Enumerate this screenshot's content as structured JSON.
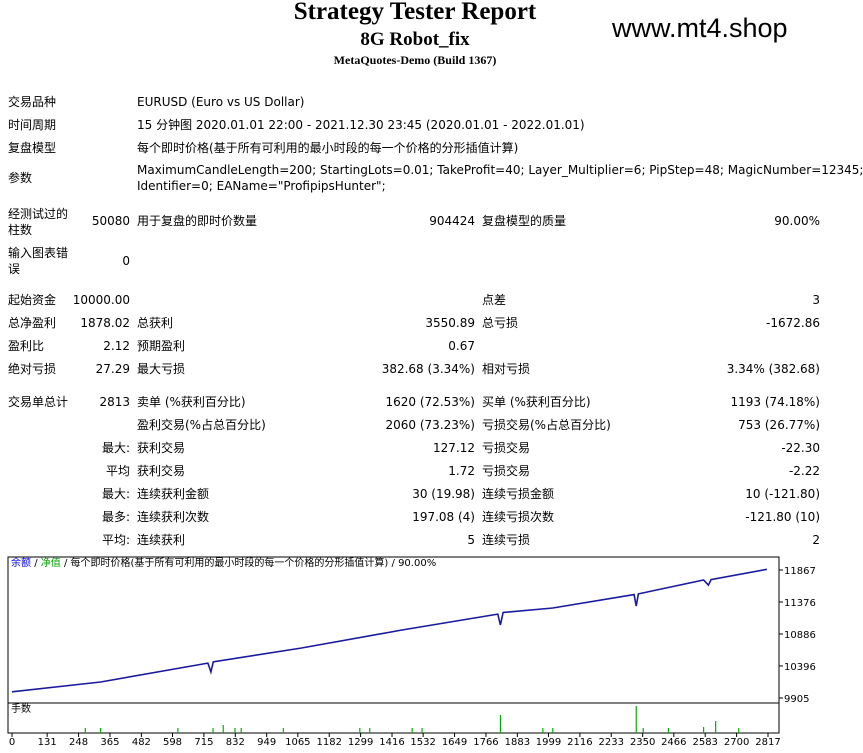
{
  "header": {
    "title": "Strategy Tester Report",
    "subtitle": "8G Robot_fix",
    "build": "MetaQuotes-Demo (Build 1367)",
    "watermark": "www.mt4.shop"
  },
  "info": [
    {
      "label": "交易品种",
      "value": "EURUSD (Euro vs US Dollar)"
    },
    {
      "label": "时间周期",
      "value": "15 分钟图 2020.01.01 22:00 - 2021.12.30 23:45 (2020.01.01 - 2022.01.01)"
    },
    {
      "label": "复盘模型",
      "value": "每个即时价格(基于所有可利用的最小时段的每一个价格的分形插值计算)"
    }
  ],
  "params": {
    "label": "参数",
    "value": [
      "MaximumCandleLength=200; StartingLots=0.01; TakeProfit=40; Layer_Multiplier=6; PipStep=48; MagicNumber=12345;",
      "Identifier=0; EAName=\"ProfipipsHunter\";"
    ]
  },
  "bars_row": [
    "经测试过的柱数",
    "50080",
    "用于复盘的即时价数量",
    "904424",
    "复盘模型的质量",
    "90.00%"
  ],
  "errors_row": [
    "输入图表错误",
    "0"
  ],
  "stats": [
    [
      "起始资金",
      "10000.00",
      null,
      null,
      "点差",
      "3"
    ],
    [
      "总净盈利",
      "1878.02",
      "总获利",
      "3550.89",
      "总亏损",
      "-1672.86"
    ],
    [
      "盈利比",
      "2.12",
      "预期盈利",
      "0.67",
      null,
      null
    ],
    [
      "绝对亏损",
      "27.29",
      "最大亏损",
      "382.68 (3.34%)",
      "相对亏损",
      "3.34% (382.68)"
    ],
    [
      "交易单总计",
      "2813",
      "卖单 (%获利百分比)",
      "1620 (72.53%)",
      "买单 (%获利百分比)",
      "1193 (74.18%)"
    ],
    [
      null,
      null,
      "盈利交易(%占总百分比)",
      "2060 (73.23%)",
      "亏损交易(%占总百分比)",
      "753 (26.77%)"
    ],
    [
      null,
      "最大:",
      "获利交易",
      "127.12",
      "亏损交易",
      "-22.30"
    ],
    [
      null,
      "平均",
      "获利交易",
      "1.72",
      "亏损交易",
      "-2.22"
    ],
    [
      null,
      "最大:",
      "连续获利金额",
      "30 (19.98)",
      "连续亏损金额",
      "10 (-121.80)"
    ],
    [
      null,
      "最多:",
      "连续获利次数",
      "197.08 (4)",
      "连续亏损次数",
      "-121.80 (10)"
    ],
    [
      null,
      "平均:",
      "连续获利",
      "5",
      "连续亏损",
      "2"
    ]
  ],
  "chart_data": [
    {
      "type": "line",
      "legend_items": [
        {
          "name": "余额",
          "color": "#0000ff"
        },
        {
          "name": "净值",
          "color": "#00a000"
        }
      ],
      "legend_separator": "/",
      "legend_text": "每个即时价格(基于所有可利用的最小时段的每一个价格的分形插值计算)",
      "quality": "90.00%",
      "x": [
        0,
        330,
        730,
        741,
        750,
        1079,
        1453,
        1810,
        1820,
        1830,
        2015,
        2318,
        2326,
        2334,
        2577,
        2595,
        2605,
        2813
      ],
      "series": [
        {
          "name": "余额",
          "color": "#1a1aa0",
          "values": [
            10000,
            10150,
            10440,
            10303,
            10460,
            10671,
            10947,
            11190,
            11023,
            11215,
            11284,
            11490,
            11315,
            11500,
            11713,
            11636,
            11720,
            11878.02
          ]
        }
      ],
      "xlim": [
        -15,
        2858
      ],
      "ylim": [
        9828,
        12066
      ],
      "xticks": [
        0,
        131,
        248,
        365,
        482,
        598,
        715,
        832,
        949,
        1065,
        1182,
        1299,
        1416,
        1532,
        1649,
        1766,
        1883,
        1999,
        2116,
        2233,
        2350,
        2466,
        2583,
        2700,
        2817
      ],
      "yticks": [
        9905,
        10396,
        10886,
        11376,
        11867
      ]
    },
    {
      "type": "bar",
      "title": "手数",
      "color": "#00b000",
      "x": [
        273,
        330,
        618,
        749,
        787,
        831,
        854,
        1011,
        1296,
        1333,
        1491,
        1528,
        1820,
        1978,
        2015,
        2326,
        2352,
        2446,
        2577,
        2622,
        2708
      ],
      "values": [
        0.05,
        0.05,
        0.05,
        0.05,
        0.08,
        0.05,
        0.05,
        0.05,
        0.05,
        0.05,
        0.05,
        0.05,
        0.18,
        0.05,
        0.05,
        0.27,
        0.05,
        0.05,
        0.06,
        0.12,
        0.05
      ],
      "ylim": [
        0,
        0.3
      ]
    }
  ]
}
